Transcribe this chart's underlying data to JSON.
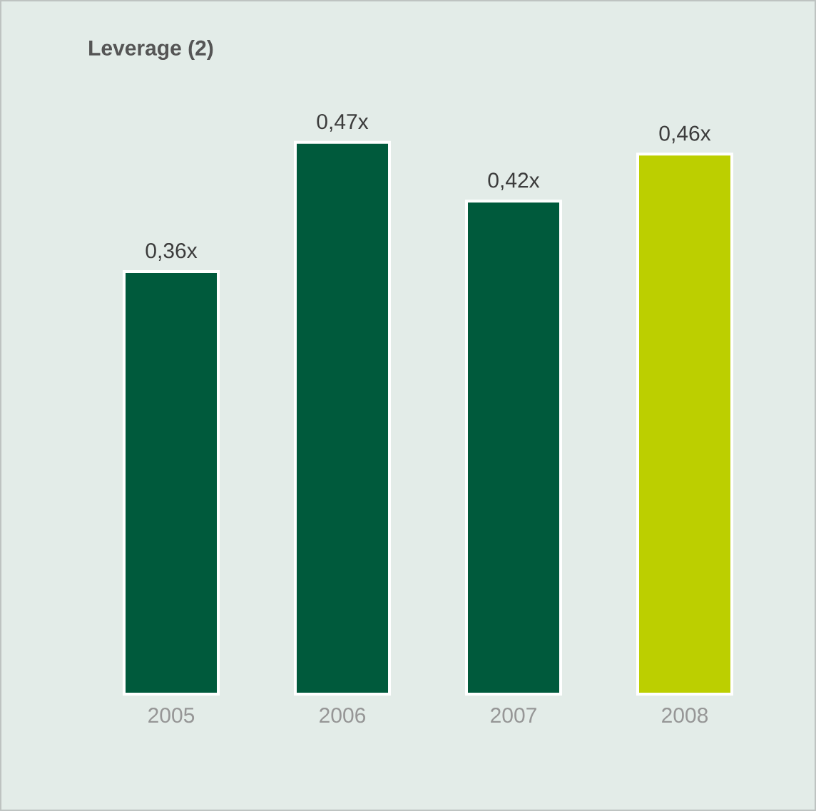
{
  "chart_data": {
    "type": "bar",
    "title": "Leverage (2)",
    "categories": [
      "2005",
      "2006",
      "2007",
      "2008"
    ],
    "values": [
      0.36,
      0.47,
      0.42,
      0.46
    ],
    "value_labels": [
      "0,36x",
      "0,47x",
      "0,42x",
      "0,46x"
    ],
    "colors": [
      "#005a3c",
      "#005a3c",
      "#005a3c",
      "#bccf00"
    ]
  }
}
